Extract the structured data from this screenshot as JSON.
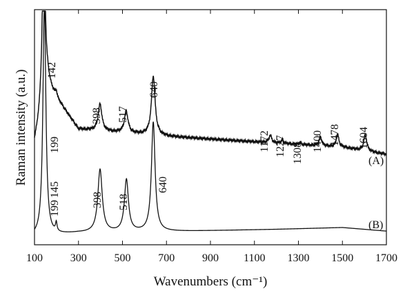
{
  "chart_data": {
    "type": "line",
    "title": "",
    "xlabel": "Wavenumbers (cm⁻¹)",
    "ylabel": "Raman intensity (a.u.)",
    "xlim": [
      100,
      1700
    ],
    "xticks": [
      100,
      300,
      500,
      700,
      900,
      1100,
      1300,
      1500,
      1700
    ],
    "yticks": [],
    "grid": false,
    "legend": "none",
    "series": [
      {
        "name": "(A)",
        "baseline": [
          [
            100,
            0.18
          ],
          [
            160,
            0.5
          ],
          [
            300,
            0.26
          ],
          [
            700,
            0.22
          ],
          [
            1100,
            0.19
          ],
          [
            1500,
            0.16
          ],
          [
            1700,
            0.12
          ]
        ],
        "peaks": [
          {
            "x": 142,
            "label": "142",
            "height": 0.95,
            "width": 8
          },
          {
            "x": 199,
            "label": "199",
            "height": 0.03,
            "width": 4
          },
          {
            "x": 398,
            "label": "398",
            "height": 0.15,
            "width": 10
          },
          {
            "x": 517,
            "label": "517",
            "height": 0.12,
            "width": 10
          },
          {
            "x": 640,
            "label": "640",
            "height": 0.33,
            "width": 10
          },
          {
            "x": 1172,
            "label": "1172",
            "height": 0.04,
            "width": 8
          },
          {
            "x": 1227,
            "label": "1227",
            "height": 0.02,
            "width": 6
          },
          {
            "x": 1308,
            "label": "1308",
            "height": 0.01,
            "width": 6
          },
          {
            "x": 1400,
            "label": "1400",
            "height": 0.05,
            "width": 7
          },
          {
            "x": 1478,
            "label": "1478",
            "height": 0.07,
            "width": 7
          },
          {
            "x": 1604,
            "label": "1604",
            "height": 0.09,
            "width": 8
          }
        ]
      },
      {
        "name": "(B)",
        "baseline": [
          [
            100,
            0.0
          ],
          [
            300,
            0.02
          ],
          [
            800,
            0.03
          ],
          [
            1200,
            0.04
          ],
          [
            1500,
            0.05
          ],
          [
            1700,
            0.03
          ]
        ],
        "peaks": [
          {
            "x": 145,
            "label": "145",
            "height": 1.3,
            "width": 8
          },
          {
            "x": 199,
            "label": "199",
            "height": 0.05,
            "width": 4
          },
          {
            "x": 398,
            "label": "398",
            "height": 0.35,
            "width": 12
          },
          {
            "x": 518,
            "label": "518",
            "height": 0.29,
            "width": 11
          },
          {
            "x": 640,
            "label": "640",
            "height": 0.61,
            "width": 10
          }
        ]
      }
    ]
  }
}
